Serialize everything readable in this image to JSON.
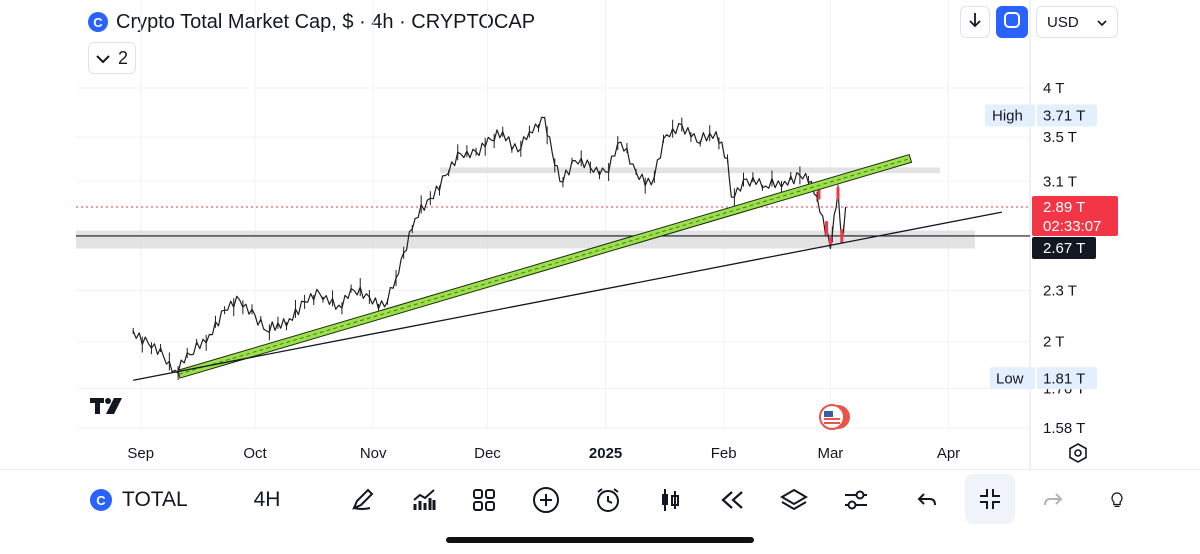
{
  "header": {
    "title": "Crypto Total Market Cap, $ · 4h · CRYPTOCAP",
    "title_icon": "cryptocap-logo-icon",
    "collapse_count": "2",
    "currency": "USD",
    "currency_options": [
      "USD"
    ]
  },
  "price_axis": {
    "ticks": [
      "4 T",
      "3.5 T",
      "3.1 T",
      "2.3 T",
      "2 T",
      "1.76 T",
      "1.58 T"
    ],
    "high_label": "High",
    "high_value": "3.71 T",
    "low_label": "Low",
    "low_value": "1.81 T",
    "last_price": "2.89 T",
    "countdown": "02:33:07",
    "line_value": "2.67 T"
  },
  "time_axis": {
    "labels": [
      "Sep",
      "Oct",
      "Nov",
      "Dec",
      "2025",
      "Feb",
      "Mar",
      "Apr"
    ]
  },
  "bottom_toolbar": {
    "symbol": "TOTAL",
    "interval": "4H",
    "tools": [
      "pen-draw-icon",
      "indicators-icon",
      "layouts-grid-icon",
      "add-icon",
      "alert-clock-icon",
      "candles-icon",
      "replay-icon",
      "layers-icon",
      "settings-sliders-icon",
      "undo-icon",
      "shrink-icon",
      "redo-icon",
      "lightbulb-icon"
    ]
  },
  "colors": {
    "accent": "#2962ff",
    "candle_line": "#1e1e1e",
    "trendline_green": "#9be04a",
    "last_price": "#f23645",
    "zone_gray": "#d9d9d9"
  },
  "chart_data": {
    "type": "line",
    "title": "Crypto Total Market Cap, $ · 4h · CRYPTOCAP",
    "ylabel": "",
    "xlabel": "",
    "y_scale": "log",
    "ylim": [
      1.55,
      4.1
    ],
    "x": [
      "2024-08-30",
      "2024-09-03",
      "2024-09-07",
      "2024-09-10",
      "2024-09-14",
      "2024-09-19",
      "2024-09-23",
      "2024-09-27",
      "2024-10-01",
      "2024-10-04",
      "2024-10-10",
      "2024-10-14",
      "2024-10-18",
      "2024-10-23",
      "2024-10-27",
      "2024-10-31",
      "2024-11-04",
      "2024-11-07",
      "2024-11-09",
      "2024-11-12",
      "2024-11-16",
      "2024-11-20",
      "2024-11-24",
      "2024-11-28",
      "2024-12-02",
      "2024-12-05",
      "2024-12-09",
      "2024-12-12",
      "2024-12-16",
      "2024-12-18",
      "2024-12-20",
      "2024-12-24",
      "2024-12-28",
      "2025-01-01",
      "2025-01-05",
      "2025-01-09",
      "2025-01-13",
      "2025-01-17",
      "2025-01-21",
      "2025-01-25",
      "2025-01-30",
      "2025-02-02",
      "2025-02-03",
      "2025-02-07",
      "2025-02-12",
      "2025-02-17",
      "2025-02-21",
      "2025-02-24",
      "2025-02-27",
      "2025-03-01",
      "2025-03-02",
      "2025-03-03",
      "2025-03-04",
      "2025-03-05"
    ],
    "values": [
      2.06,
      1.99,
      1.92,
      1.85,
      1.93,
      2.04,
      2.18,
      2.24,
      2.15,
      2.06,
      2.13,
      2.23,
      2.28,
      2.21,
      2.3,
      2.26,
      2.2,
      2.38,
      2.55,
      2.8,
      2.96,
      3.15,
      3.34,
      3.36,
      3.47,
      3.55,
      3.36,
      3.55,
      3.69,
      3.35,
      3.1,
      3.28,
      3.22,
      3.18,
      3.45,
      3.18,
      3.07,
      3.52,
      3.62,
      3.45,
      3.55,
      3.3,
      2.97,
      3.12,
      3.06,
      3.1,
      3.15,
      3.1,
      2.82,
      2.58,
      2.83,
      3.02,
      2.62,
      2.89
    ],
    "high": 3.71,
    "low": 1.81,
    "last_price": 2.89,
    "horizontal_lines": [
      2.67
    ],
    "zones": [
      [
        3.17,
        3.22
      ],
      [
        2.58,
        2.71
      ]
    ],
    "trendlines": [
      {
        "style": "green-channel",
        "from": [
          "2024-09-11",
          1.83
        ],
        "to": [
          "2025-03-22",
          3.3
        ]
      },
      {
        "style": "thin-black",
        "from": [
          "2024-08-30",
          1.8
        ],
        "to": [
          "2025-04-15",
          2.85
        ]
      }
    ],
    "x_ticks": [
      "Sep",
      "Oct",
      "Nov",
      "Dec",
      "2025",
      "Feb",
      "Mar",
      "Apr"
    ],
    "y_ticks": [
      "4 T",
      "3.5 T",
      "3.1 T",
      "2.3 T",
      "2 T",
      "1.76 T",
      "1.58 T"
    ],
    "grid": true
  }
}
